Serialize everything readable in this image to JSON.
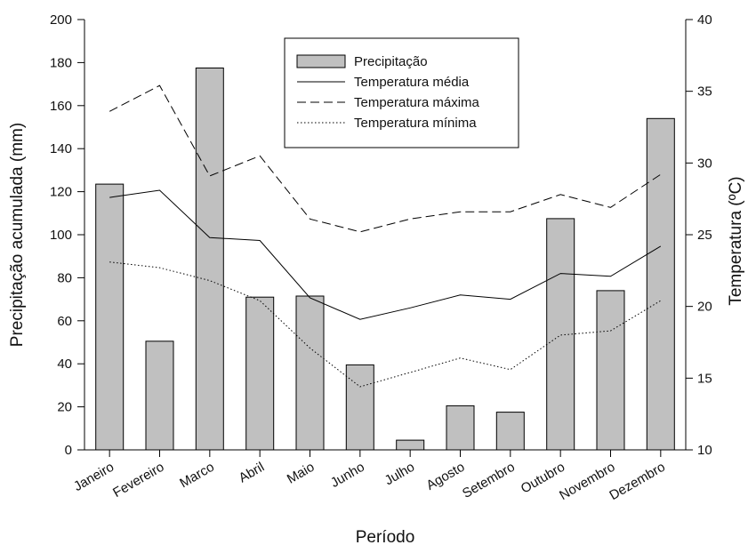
{
  "chart_data": {
    "type": "bar",
    "categories": [
      "Janeiro",
      "Fevereiro",
      "Marco",
      "Abril",
      "Maio",
      "Junho",
      "Julho",
      "Agosto",
      "Setembro",
      "Outubro",
      "Novembro",
      "Dezembro"
    ],
    "xlabel": "Período",
    "ylabel_left": "Precipitação acumulada (mm)",
    "ylabel_right": "Temperatura (ºC)",
    "ylim_left": [
      0,
      200
    ],
    "yticks_left": [
      0,
      20,
      40,
      60,
      80,
      100,
      120,
      140,
      160,
      180,
      200
    ],
    "ylim_right": [
      10,
      40
    ],
    "yticks_right": [
      10,
      15,
      20,
      25,
      30,
      35,
      40
    ],
    "grid": false,
    "legend_position": "top-center",
    "bar_color": "#c0c0c0",
    "line_color": "#000000",
    "series": [
      {
        "name": "Precipitação",
        "kind": "bar",
        "axis": "left",
        "values": [
          123.5,
          50.5,
          177.5,
          71,
          71.5,
          39.5,
          4.5,
          20.5,
          17.5,
          107.5,
          74,
          154
        ]
      },
      {
        "name": "Temperatura média",
        "kind": "line",
        "style": "solid",
        "axis": "right",
        "values": [
          27.6,
          28.1,
          24.8,
          24.6,
          20.6,
          19.1,
          19.9,
          20.8,
          20.5,
          22.3,
          22.1,
          24.2
        ]
      },
      {
        "name": "Temperatura máxima",
        "kind": "line",
        "style": "dashed",
        "axis": "right",
        "values": [
          33.6,
          35.4,
          29.1,
          30.5,
          26.1,
          25.2,
          26.1,
          26.6,
          26.6,
          27.8,
          26.9,
          29.2
        ]
      },
      {
        "name": "Temperatura mínima",
        "kind": "line",
        "style": "dotted",
        "axis": "right",
        "values": [
          23.1,
          22.7,
          21.8,
          20.4,
          17.1,
          14.4,
          15.4,
          16.4,
          15.6,
          18.0,
          18.3,
          20.4
        ]
      }
    ]
  }
}
